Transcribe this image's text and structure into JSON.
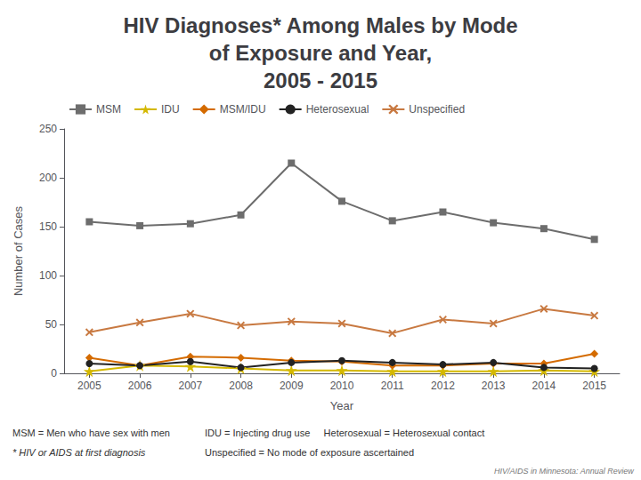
{
  "chart_data": {
    "type": "line",
    "title": "HIV Diagnoses* Among Males by Mode\nof Exposure and Year,\n2005 - 2015",
    "xlabel": "Year",
    "ylabel": "Number of Cases",
    "x": [
      2005,
      2006,
      2007,
      2008,
      2009,
      2010,
      2011,
      2012,
      2013,
      2014,
      2015
    ],
    "series": [
      {
        "name": "MSM",
        "color": "#6d6d6d",
        "marker": "square",
        "values": [
          155,
          151,
          153,
          162,
          215,
          176,
          156,
          165,
          154,
          148,
          137
        ]
      },
      {
        "name": "IDU",
        "color": "#d4b800",
        "marker": "star",
        "values": [
          2,
          8,
          7,
          5,
          3,
          3,
          2,
          2,
          2,
          3,
          2
        ]
      },
      {
        "name": "MSM/IDU",
        "color": "#d46b00",
        "marker": "diamond",
        "values": [
          16,
          8,
          17,
          16,
          13,
          12,
          8,
          8,
          10,
          10,
          20
        ]
      },
      {
        "name": "Heterosexual",
        "color": "#222222",
        "marker": "circle",
        "values": [
          10,
          8,
          12,
          6,
          11,
          13,
          11,
          9,
          11,
          6,
          5
        ]
      },
      {
        "name": "Unspecified",
        "color": "#c87941",
        "marker": "x",
        "values": [
          42,
          52,
          61,
          49,
          53,
          51,
          41,
          55,
          51,
          66,
          59
        ]
      }
    ],
    "xlim": [
      2004.5,
      2015.5
    ],
    "xticks": [
      2005,
      2006,
      2007,
      2008,
      2009,
      2010,
      2011,
      2012,
      2013,
      2014,
      2015
    ],
    "ylim": [
      0,
      250
    ],
    "yticks": [
      0,
      50,
      100,
      150,
      200,
      250
    ],
    "grid": false,
    "legend": "upper left",
    "annotations": [
      "MSM = Men who have sex with men",
      "* HIV or AIDS at first diagnosis",
      "IDU = Injecting drug use     Heterosexual = Heterosexual contact",
      "Unspecified = No mode of exposure ascertained",
      "HIV/AIDS in Minnesota: Annual Review"
    ]
  }
}
